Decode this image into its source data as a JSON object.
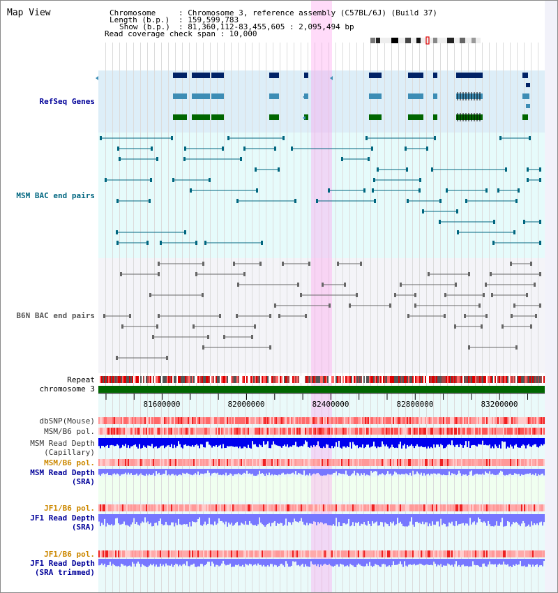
{
  "view": {
    "title": "Map View"
  },
  "info": {
    "chromosome_key": "Chromosome",
    "chromosome_value": ": Chromosome 3, reference assembly (C57BL/6J) (Build 37)",
    "length_key": "Length (b.p.)",
    "length_value": ": 159,599,783",
    "show_key": "Show (b.p.)",
    "show_value": ": 81,360,112-83,455,605 : 2,095,494 bp",
    "coverage_text": "Read coverage check span : 10,000"
  },
  "tracks": {
    "refseq": "RefSeq Genes",
    "msm_bac": "MSM BAC end pairs",
    "b6n_bac": "B6N BAC end pairs",
    "repeat": "Repeat",
    "chromosome": "chromosome 3",
    "dbsnp": "dbSNP(Mouse)",
    "msm_b6_pol_1": "MSM/B6 pol.",
    "msm_read_depth_cap_1": "MSM Read Depth",
    "msm_read_depth_cap_2": "(Capillary)",
    "msm_b6_pol_2": "MSM/B6 pol.",
    "msm_read_depth_sra_1": "MSM Read Depth",
    "msm_read_depth_sra_2": "(SRA)",
    "jf1_b6_pol_1": "JF1/B6 pol.",
    "jf1_read_depth_sra_1": "JF1 Read Depth",
    "jf1_read_depth_sra_2": "(SRA)",
    "jf1_b6_pol_2": "JF1/B6 pol.",
    "jf1_read_depth_trim_1": "JF1 Read Depth",
    "jf1_read_depth_trim_2": "(SRA trimmed)"
  },
  "axis": {
    "ticks": [
      "81600000",
      "82000000",
      "82400000",
      "82800000",
      "83200000"
    ]
  },
  "colors": {
    "refseq_label": "#000099",
    "msm_bac_label": "#006680",
    "b6n_bac_label": "#555555",
    "sra_label": "#000099",
    "jf1_pol_label": "#cc8800",
    "gene_dark": "#002266",
    "gene_mid": "#3d8db5",
    "gene_green": "#006600",
    "chromosome_bar": "#006600",
    "highlight": "#ff99ee",
    "depth_cap": "#0000ee",
    "depth_sra": "#7777ff"
  }
}
